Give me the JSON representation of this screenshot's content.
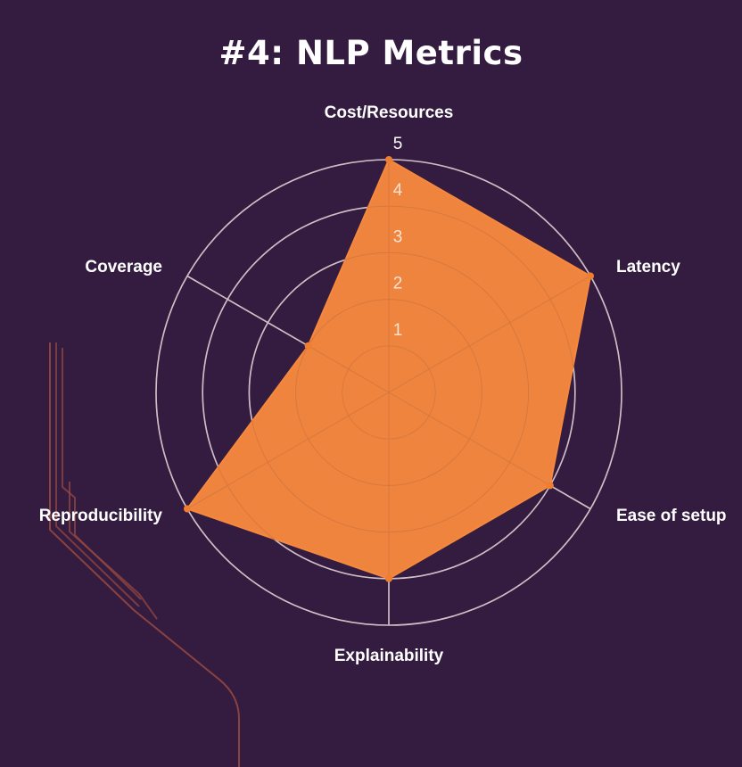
{
  "colors": {
    "background": "#341B40",
    "fill": "#F5883D",
    "grid": "#E8E1EA",
    "text": "#FFFFFF",
    "tick_text": "#FBE3D1",
    "decoration": "#9A4A40"
  },
  "chart_data": {
    "type": "radar",
    "title": "#4: NLP Metrics",
    "axes": [
      "Cost/Resources",
      "Latency",
      "Ease of setup",
      "Explainability",
      "Reproducibility",
      "Coverage"
    ],
    "values": [
      5,
      5,
      4,
      4,
      5,
      2
    ],
    "range": [
      0,
      5
    ],
    "ticks": [
      "1",
      "2",
      "3",
      "4",
      "5"
    ],
    "grid": true,
    "legend": "none"
  }
}
